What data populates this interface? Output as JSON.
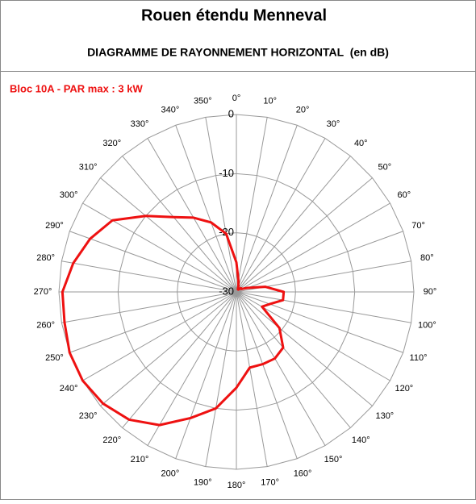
{
  "chart_data": {
    "type": "radar",
    "title": "Rouen étendu Menneval",
    "subtitle": "DIAGRAMME DE RAYONNEMENT HORIZONTAL  (en dB)",
    "categories": [
      "0°",
      "10°",
      "20°",
      "30°",
      "40°",
      "50°",
      "60°",
      "70°",
      "80°",
      "90°",
      "100°",
      "110°",
      "120°",
      "130°",
      "140°",
      "150°",
      "160°",
      "170°",
      "180°",
      "190°",
      "200°",
      "210°",
      "220°",
      "230°",
      "240°",
      "250°",
      "260°",
      "270°",
      "280°",
      "290°",
      "300°",
      "310°",
      "320°",
      "330°",
      "340°",
      "350°"
    ],
    "series": [
      {
        "name": "Bloc 10A - PAR max : 3 kW",
        "color": "#ee1111",
        "values": [
          -25,
          -28,
          -29,
          -29.5,
          -29.5,
          -29,
          -29,
          -28,
          -25,
          -22,
          -22,
          -24,
          -25,
          -20.5,
          -17.7,
          -17,
          -17,
          -17,
          -13.8,
          -10,
          -7.3,
          -4,
          -1.8,
          -0.6,
          0,
          0,
          -0.5,
          -0.6,
          -2,
          -3.7,
          -5.8,
          -10,
          -13.5,
          -15.5,
          -17.5,
          -20
        ]
      }
    ],
    "rlim": [
      -30,
      0
    ],
    "rticks": [
      -30,
      -20,
      -10,
      0
    ]
  }
}
